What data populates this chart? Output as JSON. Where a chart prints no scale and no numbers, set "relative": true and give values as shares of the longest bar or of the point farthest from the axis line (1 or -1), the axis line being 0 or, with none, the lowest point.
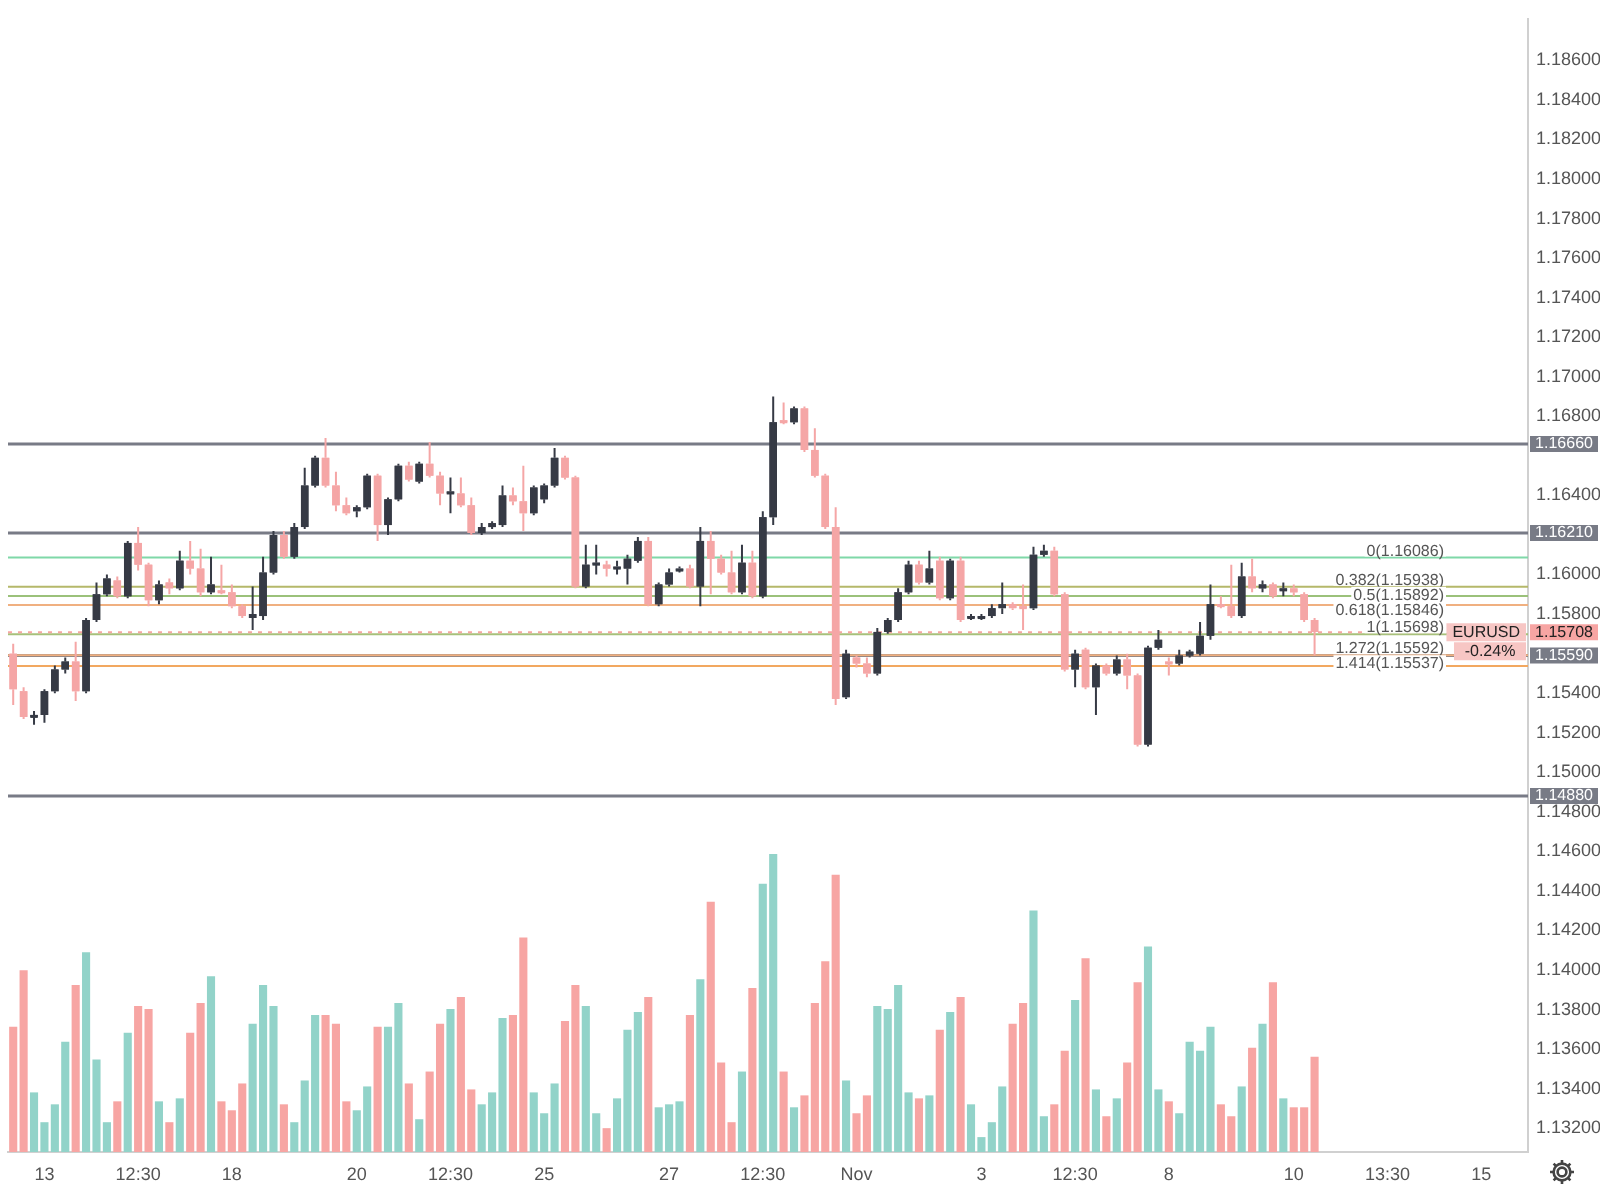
{
  "chart_data": [
    {
      "type": "candlestick",
      "categories": [
        null,
        null,
        null,
        "13",
        null,
        null,
        null,
        null,
        null,
        null,
        null,
        null,
        "12:30",
        null,
        null,
        null,
        null,
        null,
        null,
        null,
        null,
        "18",
        null,
        null,
        null,
        null,
        null,
        null,
        null,
        null,
        null,
        null,
        null,
        "20",
        null,
        null,
        null,
        null,
        null,
        null,
        null,
        null,
        "12:30",
        null,
        null,
        null,
        null,
        null,
        null,
        null,
        null,
        "25",
        null,
        null,
        null,
        null,
        null,
        null,
        null,
        null,
        null,
        null,
        null,
        "27",
        null,
        null,
        null,
        null,
        null,
        null,
        null,
        null,
        "12:30",
        null,
        null,
        null,
        null,
        null,
        null,
        null,
        null,
        "Nov",
        null,
        null,
        null,
        null,
        null,
        null,
        null,
        null,
        null,
        null,
        null,
        "3",
        null,
        null,
        null,
        null,
        null,
        null,
        null,
        null,
        "12:30",
        null,
        null,
        null,
        null,
        null,
        null,
        null,
        null,
        "8",
        null,
        null,
        null,
        null,
        null,
        null,
        null,
        null,
        null,
        null,
        null,
        "10",
        null,
        null,
        null,
        null,
        null,
        null,
        null,
        null,
        "13:30",
        null,
        null,
        null,
        null,
        null,
        null,
        null,
        null,
        "15",
        null,
        null,
        null,
        null
      ],
      "ohlc": [
        [
          1.156,
          1.1565,
          1.1534,
          1.1542
        ],
        [
          1.1541,
          1.1543,
          1.1527,
          1.1528
        ],
        [
          1.1528,
          1.1531,
          1.1524,
          1.1529
        ],
        [
          1.1529,
          1.1542,
          1.1525,
          1.1541
        ],
        [
          1.1541,
          1.1554,
          1.154,
          1.1552
        ],
        [
          1.1552,
          1.1558,
          1.155,
          1.1556
        ],
        [
          1.1556,
          1.1566,
          1.1536,
          1.1541
        ],
        [
          1.1541,
          1.1578,
          1.154,
          1.1577
        ],
        [
          1.1577,
          1.1596,
          1.1576,
          1.159
        ],
        [
          1.159,
          1.16,
          1.1589,
          1.1598
        ],
        [
          1.1597,
          1.1599,
          1.1588,
          1.1589
        ],
        [
          1.1589,
          1.1617,
          1.1588,
          1.1616
        ],
        [
          1.1616,
          1.1624,
          1.1602,
          1.1605
        ],
        [
          1.1605,
          1.1606,
          1.1584,
          1.1587
        ],
        [
          1.1587,
          1.1597,
          1.1585,
          1.1595
        ],
        [
          1.1596,
          1.1598,
          1.159,
          1.1593
        ],
        [
          1.1593,
          1.1612,
          1.1592,
          1.1607
        ],
        [
          1.1607,
          1.1617,
          1.16,
          1.1603
        ],
        [
          1.1603,
          1.1613,
          1.1589,
          1.1591
        ],
        [
          1.1591,
          1.1609,
          1.159,
          1.1595
        ],
        [
          1.1592,
          1.1605,
          1.159,
          1.1591
        ],
        [
          1.1591,
          1.1595,
          1.1583,
          1.1584
        ],
        [
          1.1584,
          1.1585,
          1.1578,
          1.1579
        ],
        [
          1.1578,
          1.1594,
          1.1572,
          1.158
        ],
        [
          1.1579,
          1.1609,
          1.1577,
          1.1601
        ],
        [
          1.1601,
          1.1622,
          1.16,
          1.162
        ],
        [
          1.162,
          1.1622,
          1.1608,
          1.1609
        ],
        [
          1.1609,
          1.1626,
          1.1608,
          1.1624
        ],
        [
          1.1624,
          1.1654,
          1.1623,
          1.1645
        ],
        [
          1.1645,
          1.166,
          1.1644,
          1.1659
        ],
        [
          1.1659,
          1.1669,
          1.1644,
          1.1645
        ],
        [
          1.1645,
          1.1652,
          1.1632,
          1.1635
        ],
        [
          1.1635,
          1.1639,
          1.163,
          1.1631
        ],
        [
          1.1632,
          1.1635,
          1.1629,
          1.1634
        ],
        [
          1.1634,
          1.1651,
          1.1633,
          1.165
        ],
        [
          1.165,
          1.1651,
          1.1617,
          1.1625
        ],
        [
          1.1625,
          1.1639,
          1.162,
          1.1638
        ],
        [
          1.1638,
          1.1656,
          1.1637,
          1.1655
        ],
        [
          1.1655,
          1.1657,
          1.1647,
          1.1648
        ],
        [
          1.1647,
          1.1657,
          1.1646,
          1.1656
        ],
        [
          1.1656,
          1.1667,
          1.1649,
          1.165
        ],
        [
          1.165,
          1.1652,
          1.1635,
          1.1641
        ],
        [
          1.1641,
          1.1649,
          1.1631,
          1.1642
        ],
        [
          1.1641,
          1.1649,
          1.1634,
          1.1635
        ],
        [
          1.1635,
          1.1639,
          1.162,
          1.1621
        ],
        [
          1.1621,
          1.1626,
          1.162,
          1.1624
        ],
        [
          1.1624,
          1.1627,
          1.1623,
          1.1626
        ],
        [
          1.1625,
          1.1645,
          1.1624,
          1.164
        ],
        [
          1.164,
          1.1644,
          1.1635,
          1.1637
        ],
        [
          1.1637,
          1.1655,
          1.1622,
          1.1631
        ],
        [
          1.1631,
          1.1645,
          1.163,
          1.1644
        ],
        [
          1.1638,
          1.1646,
          1.1636,
          1.1645
        ],
        [
          1.1645,
          1.1664,
          1.1644,
          1.1659
        ],
        [
          1.1659,
          1.166,
          1.1648,
          1.1649
        ],
        [
          1.1649,
          1.165,
          1.1593,
          1.1594
        ],
        [
          1.1594,
          1.1615,
          1.1593,
          1.1605
        ],
        [
          1.1605,
          1.1615,
          1.16,
          1.1606
        ],
        [
          1.1605,
          1.1607,
          1.1599,
          1.1603
        ],
        [
          1.1603,
          1.1607,
          1.16,
          1.1604
        ],
        [
          1.1603,
          1.161,
          1.1595,
          1.1608
        ],
        [
          1.1607,
          1.1619,
          1.1606,
          1.1617
        ],
        [
          1.1617,
          1.1619,
          1.1584,
          1.1585
        ],
        [
          1.1585,
          1.1596,
          1.1584,
          1.1595
        ],
        [
          1.1595,
          1.1603,
          1.1594,
          1.1601
        ],
        [
          1.1602,
          1.1604,
          1.1601,
          1.1603
        ],
        [
          1.1603,
          1.1605,
          1.1593,
          1.1594
        ],
        [
          1.1594,
          1.1624,
          1.1584,
          1.1617
        ],
        [
          1.1617,
          1.1622,
          1.159,
          1.1608
        ],
        [
          1.1608,
          1.161,
          1.16,
          1.1601
        ],
        [
          1.1601,
          1.1612,
          1.159,
          1.1591
        ],
        [
          1.1591,
          1.1615,
          1.159,
          1.1606
        ],
        [
          1.1606,
          1.1612,
          1.1588,
          1.1589
        ],
        [
          1.1589,
          1.1632,
          1.1588,
          1.1629
        ],
        [
          1.1629,
          1.169,
          1.1625,
          1.1677
        ],
        [
          1.1678,
          1.1687,
          1.1676,
          1.1677
        ],
        [
          1.1677,
          1.1685,
          1.1676,
          1.1684
        ],
        [
          1.1684,
          1.1685,
          1.1662,
          1.1663
        ],
        [
          1.1663,
          1.1674,
          1.1649,
          1.165
        ],
        [
          1.165,
          1.1651,
          1.1623,
          1.1624
        ],
        [
          1.1624,
          1.1634,
          1.1534,
          1.1537
        ],
        [
          1.1538,
          1.1562,
          1.1537,
          1.156
        ],
        [
          1.1558,
          1.1559,
          1.1553,
          1.1555
        ],
        [
          1.1555,
          1.1558,
          1.1548,
          1.155
        ],
        [
          1.155,
          1.1573,
          1.1549,
          1.1571
        ],
        [
          1.1571,
          1.1578,
          1.157,
          1.1577
        ],
        [
          1.1577,
          1.1593,
          1.1576,
          1.1591
        ],
        [
          1.1591,
          1.1607,
          1.159,
          1.1605
        ],
        [
          1.1605,
          1.1607,
          1.1595,
          1.1596
        ],
        [
          1.1596,
          1.1612,
          1.1595,
          1.1603
        ],
        [
          1.1607,
          1.1609,
          1.1587,
          1.1588
        ],
        [
          1.1588,
          1.1608,
          1.1587,
          1.1607
        ],
        [
          1.1607,
          1.1609,
          1.1576,
          1.1577
        ],
        [
          1.1578,
          1.158,
          1.1577,
          1.1579
        ],
        [
          1.1578,
          1.158,
          1.1577,
          1.1579
        ],
        [
          1.1579,
          1.1585,
          1.1578,
          1.1583
        ],
        [
          1.1583,
          1.1596,
          1.158,
          1.1585
        ],
        [
          1.1585,
          1.1586,
          1.1582,
          1.1583
        ],
        [
          1.1584,
          1.1595,
          1.1572,
          1.1583
        ],
        [
          1.1583,
          1.1614,
          1.1582,
          1.161
        ],
        [
          1.161,
          1.1615,
          1.1609,
          1.1612
        ],
        [
          1.1612,
          1.1614,
          1.1589,
          1.159
        ],
        [
          1.159,
          1.1591,
          1.1551,
          1.1552
        ],
        [
          1.1552,
          1.1562,
          1.1543,
          1.156
        ],
        [
          1.1562,
          1.1563,
          1.1542,
          1.1543
        ],
        [
          1.1543,
          1.1555,
          1.1529,
          1.1554
        ],
        [
          1.1554,
          1.1555,
          1.1549,
          1.155
        ],
        [
          1.155,
          1.1559,
          1.1549,
          1.1557
        ],
        [
          1.1557,
          1.156,
          1.1542,
          1.1549
        ],
        [
          1.1549,
          1.155,
          1.1513,
          1.1514
        ],
        [
          1.1514,
          1.1564,
          1.1513,
          1.1563
        ],
        [
          1.1563,
          1.1572,
          1.1562,
          1.1567
        ],
        [
          1.1556,
          1.1558,
          1.1549,
          1.1555
        ],
        [
          1.1555,
          1.1562,
          1.1554,
          1.1559
        ],
        [
          1.1559,
          1.1562,
          1.1558,
          1.1561
        ],
        [
          1.156,
          1.1576,
          1.1559,
          1.1569
        ],
        [
          1.1569,
          1.1595,
          1.1567,
          1.1585
        ],
        [
          1.1585,
          1.1589,
          1.1583,
          1.1584
        ],
        [
          1.1584,
          1.1605,
          1.1578,
          1.1579
        ],
        [
          1.1579,
          1.1606,
          1.1578,
          1.1599
        ],
        [
          1.1599,
          1.1608,
          1.1591,
          1.1593
        ],
        [
          1.1593,
          1.1597,
          1.1591,
          1.1595
        ],
        [
          1.1595,
          1.1596,
          1.1588,
          1.1589
        ],
        [
          1.1592,
          1.1596,
          1.1589,
          1.1593
        ],
        [
          1.1593,
          1.1595,
          1.1589,
          1.1591
        ],
        [
          1.159,
          1.1591,
          1.1576,
          1.1577
        ],
        [
          1.1577,
          1.1578,
          1.1559,
          1.1571
        ],
        null,
        null,
        null,
        null,
        null,
        null,
        null,
        null,
        null,
        null,
        null,
        null,
        null,
        null,
        null,
        null,
        null,
        null,
        null,
        null
      ],
      "colors": [
        "#f5a6a6",
        "#f5a6a6",
        "#363a45",
        "#363a45",
        "#363a45",
        "#363a45",
        "#f5a6a6",
        "#363a45",
        "#363a45",
        "#363a45",
        "#f5a6a6",
        "#363a45",
        "#f5a6a6",
        "#f5a6a6",
        "#363a45",
        "#f5a6a6",
        "#363a45",
        "#f5a6a6",
        "#f5a6a6",
        "#363a45",
        "#f5a6a6",
        "#f5a6a6",
        "#f5a6a6",
        "#363a45",
        "#363a45",
        "#363a45",
        "#f5a6a6",
        "#363a45",
        "#363a45",
        "#363a45",
        "#f5a6a6",
        "#f5a6a6",
        "#f5a6a6",
        "#363a45",
        "#363a45",
        "#f5a6a6",
        "#363a45",
        "#363a45",
        "#f5a6a6",
        "#363a45",
        "#f5a6a6",
        "#f5a6a6",
        "#363a45",
        "#f5a6a6",
        "#f5a6a6",
        "#363a45",
        "#363a45",
        "#363a45",
        "#f5a6a6",
        "#f5a6a6",
        "#363a45",
        "#363a45",
        "#363a45",
        "#f5a6a6",
        "#f5a6a6",
        "#363a45",
        "#363a45",
        "#f5a6a6",
        "#363a45",
        "#363a45",
        "#363a45",
        "#f5a6a6",
        "#363a45",
        "#363a45",
        "#363a45",
        "#f5a6a6",
        "#363a45",
        "#f5a6a6",
        "#f5a6a6",
        "#f5a6a6",
        "#363a45",
        "#f5a6a6",
        "#363a45",
        "#363a45",
        "#f5a6a6",
        "#363a45",
        "#f5a6a6",
        "#f5a6a6",
        "#f5a6a6",
        "#f5a6a6",
        "#363a45",
        "#f5a6a6",
        "#f5a6a6",
        "#363a45",
        "#363a45",
        "#363a45",
        "#363a45",
        "#f5a6a6",
        "#363a45",
        "#f5a6a6",
        "#363a45",
        "#f5a6a6",
        "#363a45",
        "#363a45",
        "#363a45",
        "#363a45",
        "#f5a6a6",
        "#f5a6a6",
        "#363a45",
        "#363a45",
        "#f5a6a6",
        "#f5a6a6",
        "#363a45",
        "#f5a6a6",
        "#363a45",
        "#f5a6a6",
        "#363a45",
        "#f5a6a6",
        "#f5a6a6",
        "#363a45",
        "#363a45",
        "#f5a6a6",
        "#363a45",
        "#363a45",
        "#363a45",
        "#363a45",
        "#f5a6a6",
        "#f5a6a6",
        "#363a45",
        "#f5a6a6",
        "#363a45",
        "#f5a6a6",
        "#363a45",
        "#f5a6a6",
        "#f5a6a6",
        "#f5a6a6",
        null,
        null,
        null,
        null,
        null,
        null,
        null,
        null,
        null,
        null,
        null,
        null,
        null,
        null,
        null,
        null,
        null,
        null,
        null,
        null
      ],
      "ylim": [
        1.1308,
        1.1881
      ],
      "yticks": [
        {
          "value": 1.132,
          "label": "1.13200"
        },
        {
          "value": 1.134,
          "label": "1.13400"
        },
        {
          "value": 1.136,
          "label": "1.13600"
        },
        {
          "value": 1.138,
          "label": "1.13800"
        },
        {
          "value": 1.14,
          "label": "1.14000"
        },
        {
          "value": 1.142,
          "label": "1.14200"
        },
        {
          "value": 1.144,
          "label": "1.14400"
        },
        {
          "value": 1.146,
          "label": "1.14600"
        },
        {
          "value": 1.148,
          "label": "1.14800"
        },
        {
          "value": 1.15,
          "label": "1.15000"
        },
        {
          "value": 1.152,
          "label": "1.15200"
        },
        {
          "value": 1.154,
          "label": "1.15400"
        },
        {
          "value": 1.158,
          "label": "1.15800"
        },
        {
          "value": 1.16,
          "label": "1.16000"
        },
        {
          "value": 1.164,
          "label": "1.16400"
        },
        {
          "value": 1.168,
          "label": "1.16800"
        },
        {
          "value": 1.17,
          "label": "1.17000"
        },
        {
          "value": 1.172,
          "label": "1.17200"
        },
        {
          "value": 1.174,
          "label": "1.17400"
        },
        {
          "value": 1.176,
          "label": "1.17600"
        },
        {
          "value": 1.178,
          "label": "1.17800"
        },
        {
          "value": 1.18,
          "label": "1.18000"
        },
        {
          "value": 1.182,
          "label": "1.18200"
        },
        {
          "value": 1.184,
          "label": "1.18400"
        },
        {
          "value": 1.186,
          "label": "1.18600"
        }
      ],
      "ref_lines": [
        {
          "axis": "y",
          "value": 1.1666,
          "label": "1.16660"
        },
        {
          "axis": "y",
          "value": 1.1621,
          "label": "1.16210"
        },
        {
          "axis": "y",
          "value": 1.1559,
          "label": "1.15590"
        },
        {
          "axis": "y",
          "value": 1.1488,
          "label": "1.14880"
        },
        {
          "axis": "y",
          "value": 1.16086,
          "label": "0(1.16086)",
          "color": "#7fd8a8"
        },
        {
          "axis": "y",
          "value": 1.15938,
          "label": "0.382(1.15938)",
          "color": "#b5b86a"
        },
        {
          "axis": "y",
          "value": 1.15892,
          "label": "0.5(1.15892)",
          "color": "#9bc17a"
        },
        {
          "axis": "y",
          "value": 1.15846,
          "label": "0.618(1.15846)",
          "color": "#f0b080"
        },
        {
          "axis": "y",
          "value": 1.15698,
          "label": "1(1.15698)",
          "color": "#a7c07a"
        },
        {
          "axis": "y",
          "value": 1.15592,
          "label": "1.272(1.15592)",
          "color": "#f0b080"
        },
        {
          "axis": "y",
          "value": 1.15537,
          "label": "1.414(1.15537)",
          "color": "#f2a860"
        },
        {
          "axis": "y",
          "value": 1.15708,
          "label": "1.15708",
          "color": "#f7a5a3",
          "line_style": "dotted"
        }
      ],
      "annotations": [
        "EURUSD",
        "-0.24%"
      ],
      "grid": false,
      "legend": false
    },
    {
      "type": "bar",
      "relative": true,
      "tick_labels": false,
      "categories": [
        null,
        null,
        null,
        null,
        null,
        null,
        null,
        null,
        null,
        null,
        null,
        null,
        null,
        null,
        null,
        null,
        null,
        null,
        null,
        null,
        null,
        null,
        null,
        null,
        null,
        null,
        null,
        null,
        null,
        null,
        null,
        null,
        null,
        null,
        null,
        null,
        null,
        null,
        null,
        null,
        null,
        null,
        null,
        null,
        null,
        null,
        null,
        null,
        null,
        null,
        null,
        null,
        null,
        null,
        null,
        null,
        null,
        null,
        null,
        null,
        null,
        null,
        null,
        null,
        null,
        null,
        null,
        null,
        null,
        null,
        null,
        null,
        null,
        null,
        null,
        null,
        null,
        null,
        null,
        null,
        null,
        null,
        null,
        null,
        null,
        null,
        null,
        null,
        null,
        null,
        null,
        null,
        null,
        null,
        null,
        null,
        null,
        null,
        null,
        null,
        null,
        null,
        null,
        null,
        null,
        null,
        null,
        null,
        null,
        null,
        null,
        null,
        null,
        null,
        null,
        null,
        null,
        null,
        null,
        null,
        null,
        null,
        null,
        null,
        null,
        null,
        null,
        null,
        null,
        null,
        null,
        null,
        null,
        null,
        null,
        null,
        null,
        null,
        null,
        null,
        null,
        null,
        null,
        null,
        null,
        null
      ],
      "values": [
        0.42,
        0.61,
        0.2,
        0.1,
        0.16,
        0.37,
        0.56,
        0.67,
        0.31,
        0.1,
        0.17,
        0.4,
        0.49,
        0.48,
        0.17,
        0.1,
        0.18,
        0.4,
        0.5,
        0.59,
        0.17,
        0.14,
        0.23,
        0.43,
        0.56,
        0.49,
        0.16,
        0.1,
        0.24,
        0.46,
        0.46,
        0.43,
        0.17,
        0.14,
        0.22,
        0.42,
        0.42,
        0.5,
        0.23,
        0.11,
        0.27,
        0.43,
        0.48,
        0.52,
        0.21,
        0.16,
        0.2,
        0.45,
        0.46,
        0.72,
        0.2,
        0.13,
        0.23,
        0.44,
        0.56,
        0.49,
        0.13,
        0.08,
        0.18,
        0.41,
        0.47,
        0.52,
        0.15,
        0.16,
        0.17,
        0.46,
        0.58,
        0.84,
        0.3,
        0.1,
        0.27,
        0.55,
        0.9,
        1,
        0.27,
        0.15,
        0.19,
        0.5,
        0.64,
        0.93,
        0.24,
        0.13,
        0.19,
        0.49,
        0.48,
        0.56,
        0.2,
        0.18,
        0.19,
        0.41,
        0.47,
        0.52,
        0.16,
        0.05,
        0.1,
        0.22,
        0.43,
        0.5,
        0.81,
        0.12,
        0.16,
        0.34,
        0.51,
        0.65,
        0.21,
        0.12,
        0.18,
        0.3,
        0.57,
        0.69,
        0.21,
        0.17,
        0.13,
        0.37,
        0.34,
        0.42,
        0.16,
        0.12,
        0.22,
        0.35,
        0.43,
        0.57,
        0.18,
        0.15,
        0.15,
        0.32,
        null,
        null,
        null,
        null,
        null,
        null,
        null,
        null,
        null,
        null,
        null,
        null,
        null,
        null,
        null,
        null,
        null,
        null,
        null,
        null
      ],
      "colors": [
        "#f7a5a3",
        "#f7a5a3",
        "#92d3c9",
        "#92d3c9",
        "#92d3c9",
        "#92d3c9",
        "#f7a5a3",
        "#92d3c9",
        "#92d3c9",
        "#92d3c9",
        "#f7a5a3",
        "#92d3c9",
        "#f7a5a3",
        "#f7a5a3",
        "#92d3c9",
        "#f7a5a3",
        "#92d3c9",
        "#f7a5a3",
        "#f7a5a3",
        "#92d3c9",
        "#f7a5a3",
        "#f7a5a3",
        "#f7a5a3",
        "#92d3c9",
        "#92d3c9",
        "#92d3c9",
        "#f7a5a3",
        "#92d3c9",
        "#92d3c9",
        "#92d3c9",
        "#f7a5a3",
        "#f7a5a3",
        "#f7a5a3",
        "#92d3c9",
        "#92d3c9",
        "#f7a5a3",
        "#92d3c9",
        "#92d3c9",
        "#f7a5a3",
        "#92d3c9",
        "#f7a5a3",
        "#f7a5a3",
        "#92d3c9",
        "#f7a5a3",
        "#f7a5a3",
        "#92d3c9",
        "#92d3c9",
        "#92d3c9",
        "#f7a5a3",
        "#f7a5a3",
        "#92d3c9",
        "#92d3c9",
        "#92d3c9",
        "#f7a5a3",
        "#f7a5a3",
        "#92d3c9",
        "#92d3c9",
        "#f7a5a3",
        "#92d3c9",
        "#92d3c9",
        "#92d3c9",
        "#f7a5a3",
        "#92d3c9",
        "#92d3c9",
        "#92d3c9",
        "#f7a5a3",
        "#92d3c9",
        "#f7a5a3",
        "#f7a5a3",
        "#f7a5a3",
        "#92d3c9",
        "#f7a5a3",
        "#92d3c9",
        "#92d3c9",
        "#f7a5a3",
        "#92d3c9",
        "#f7a5a3",
        "#f7a5a3",
        "#f7a5a3",
        "#f7a5a3",
        "#92d3c9",
        "#f7a5a3",
        "#f7a5a3",
        "#92d3c9",
        "#92d3c9",
        "#92d3c9",
        "#92d3c9",
        "#f7a5a3",
        "#92d3c9",
        "#f7a5a3",
        "#92d3c9",
        "#f7a5a3",
        "#92d3c9",
        "#92d3c9",
        "#92d3c9",
        "#92d3c9",
        "#f7a5a3",
        "#f7a5a3",
        "#92d3c9",
        "#92d3c9",
        "#f7a5a3",
        "#f7a5a3",
        "#92d3c9",
        "#f7a5a3",
        "#92d3c9",
        "#f7a5a3",
        "#92d3c9",
        "#f7a5a3",
        "#f7a5a3",
        "#92d3c9",
        "#92d3c9",
        "#f7a5a3",
        "#92d3c9",
        "#92d3c9",
        "#92d3c9",
        "#92d3c9",
        "#f7a5a3",
        "#f7a5a3",
        "#92d3c9",
        "#f7a5a3",
        "#92d3c9",
        "#f7a5a3",
        "#92d3c9",
        "#f7a5a3",
        "#f7a5a3",
        "#f7a5a3",
        null,
        null,
        null,
        null,
        null,
        null,
        null,
        null,
        null,
        null,
        null,
        null,
        null,
        null,
        null,
        null,
        null,
        null,
        null,
        null
      ],
      "grid": false,
      "legend": false
    }
  ]
}
